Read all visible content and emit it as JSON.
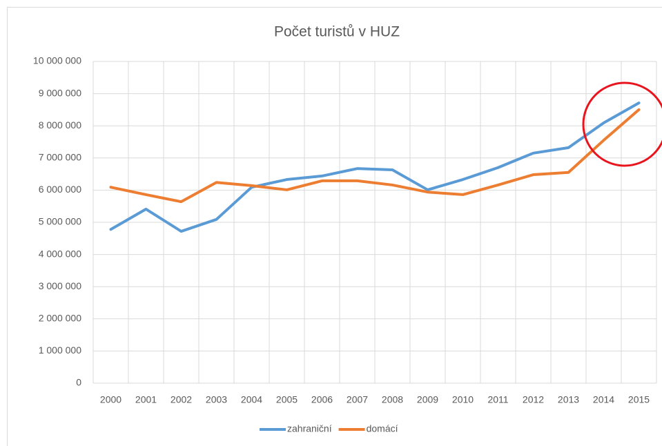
{
  "chart_data": {
    "type": "line",
    "title": "Počet turistů v HUZ",
    "categories": [
      "2000",
      "2001",
      "2002",
      "2003",
      "2004",
      "2005",
      "2006",
      "2007",
      "2008",
      "2009",
      "2010",
      "2011",
      "2012",
      "2013",
      "2014",
      "2015"
    ],
    "series": [
      {
        "name": "zahraniční",
        "color": "#5b9bd5",
        "values": [
          4780000,
          5410000,
          4720000,
          5090000,
          6090000,
          6330000,
          6440000,
          6670000,
          6630000,
          6010000,
          6330000,
          6700000,
          7150000,
          7320000,
          8090000,
          8710000
        ]
      },
      {
        "name": "domácí",
        "color": "#ed7d31",
        "values": [
          6090000,
          5860000,
          5640000,
          6240000,
          6140000,
          6010000,
          6290000,
          6290000,
          6160000,
          5940000,
          5860000,
          6160000,
          6480000,
          6550000,
          7550000,
          8500000
        ]
      }
    ],
    "ylim": [
      0,
      10000000
    ],
    "yticks": [
      0,
      {
        "value": 1000000,
        "label": "1 000 000"
      },
      {
        "value": 2000000,
        "label": "2 000 000"
      },
      {
        "value": 3000000,
        "label": "3 000 000"
      },
      {
        "value": 4000000,
        "label": "4 000 000"
      },
      {
        "value": 5000000,
        "label": "5 000 000"
      },
      {
        "value": 6000000,
        "label": "6 000 000"
      },
      {
        "value": 7000000,
        "label": "7 000 000"
      },
      {
        "value": 8000000,
        "label": "8 000 000"
      },
      {
        "value": 9000000,
        "label": "9 000 000"
      },
      {
        "value": 10000000,
        "label": "10 000 000"
      }
    ],
    "grid": true,
    "legend": "bottom"
  }
}
